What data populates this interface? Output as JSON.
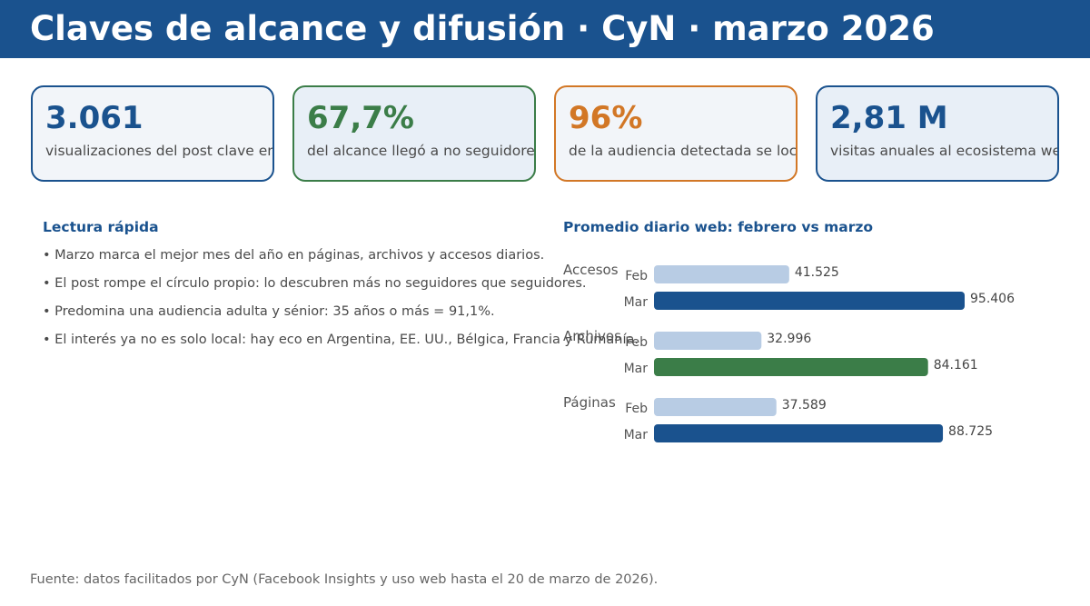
{
  "header": {
    "title": "Claves de alcance y difusión · CyN · marzo 2026"
  },
  "cards": [
    {
      "value": "3.061",
      "desc": "visualizaciones del post clave en Facebook",
      "color": "#1a528e",
      "bg": "#f2f5f9"
    },
    {
      "value": "67,7%",
      "desc": "del alcance llegó a no seguidores",
      "color": "#3b7d48",
      "bg": "#e8eff7"
    },
    {
      "value": "96%",
      "desc": "de la audiencia detectada se localiza en España",
      "color": "#d27726",
      "bg": "#f2f5f9"
    },
    {
      "value": "2,81 M",
      "desc": "visitas anuales al ecosistema web de CyN",
      "color": "#1a528e",
      "bg": "#e8eff7"
    }
  ],
  "lectura": {
    "title": "Lectura rápida",
    "bullets": [
      "• Marzo marca el mejor mes del año en páginas, archivos y accesos diarios.",
      "• El post rompe el círculo propio: lo descubren más no seguidores que seguidores.",
      "• Predomina una audiencia adulta y sénior: 35 años o más = 91,1%.",
      "• El interés ya no es solo local: hay eco en Argentina, EE. UU., Bélgica, Francia y Rumanía."
    ]
  },
  "chart_data": {
    "type": "bar",
    "orientation": "horizontal",
    "title": "Promedio diario web: febrero vs marzo",
    "groups": [
      {
        "name": "Accesos",
        "bars": [
          {
            "label": "Feb",
            "value": 41525,
            "display": "41.525",
            "color": "#b8cce4"
          },
          {
            "label": "Mar",
            "value": 95406,
            "display": "95.406",
            "color": "#1a528e"
          }
        ]
      },
      {
        "name": "Archivos",
        "bars": [
          {
            "label": "Feb",
            "value": 32996,
            "display": "32.996",
            "color": "#b8cce4"
          },
          {
            "label": "Mar",
            "value": 84161,
            "display": "84.161",
            "color": "#3b7d48"
          }
        ]
      },
      {
        "name": "Páginas",
        "bars": [
          {
            "label": "Feb",
            "value": 37589,
            "display": "37.589",
            "color": "#b8cce4"
          },
          {
            "label": "Mar",
            "value": 88725,
            "display": "88.725",
            "color": "#1a528e"
          }
        ]
      }
    ],
    "grid": false,
    "legend": "none"
  },
  "source": "Fuente: datos facilitados por CyN (Facebook Insights y uso web hasta el 20 de marzo de 2026)."
}
